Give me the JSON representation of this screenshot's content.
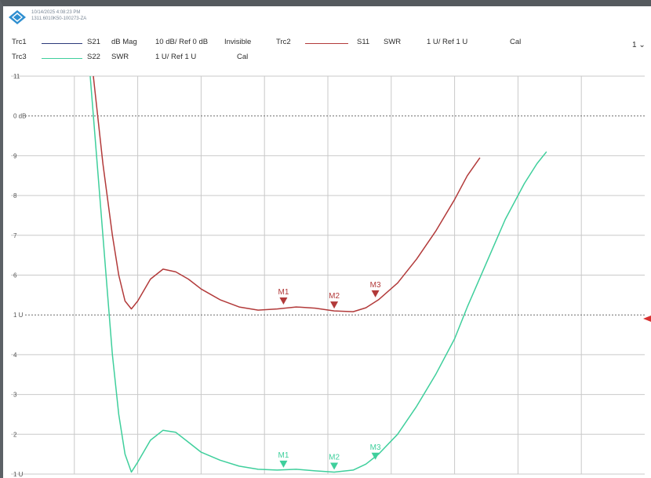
{
  "header": {
    "timestamp": "10/14/2025 4:08:23 PM",
    "serial": "1311.6010K50-100273-ZA"
  },
  "channel_selector": {
    "label": "1",
    "icon": "chevron-down-icon"
  },
  "legend": [
    {
      "trace": "Trc1",
      "param": "S21",
      "format": "dB Mag",
      "scale": "10 dB/ Ref 0 dB",
      "state": "Invisible",
      "color": "#2c3a7a"
    },
    {
      "trace": "Trc2",
      "param": "S11",
      "format": "SWR",
      "scale": "1 U/ Ref 1 U",
      "state": "Cal",
      "color": "#b23a3a"
    },
    {
      "trace": "Trc3",
      "param": "S22",
      "format": "SWR",
      "scale": "1 U/ Ref 1 U",
      "state": "Cal",
      "color": "#3fcf9c"
    }
  ],
  "ref_labels": {
    "trc1": "0 dB",
    "trc23": "1 U"
  },
  "colors": {
    "trc2": "#b23a3a",
    "trc3": "#3fcf9c",
    "grid": "#c9c9c9",
    "reference_line": "#6d6d6d"
  },
  "chart_data": {
    "type": "line",
    "title": "",
    "xlabel": "",
    "ylabel": "",
    "grid": true,
    "xlim": [
      0,
      10
    ],
    "ylim": [
      1,
      11
    ],
    "y_tick_labels": [
      "1 U",
      "2",
      "3",
      "4",
      "1 U",
      "6",
      "7",
      "8",
      "9",
      "0 dB",
      "11"
    ],
    "series": [
      {
        "name": "Trc2",
        "x": [
          1.3,
          1.45,
          1.6,
          1.7,
          1.8,
          1.9,
          2.0,
          2.2,
          2.4,
          2.6,
          2.8,
          3.0,
          3.3,
          3.6,
          3.9,
          4.2,
          4.5,
          4.8,
          5.1,
          5.4,
          5.6,
          5.8,
          6.1,
          6.4,
          6.7,
          7.0,
          7.2,
          7.4
        ],
        "y": [
          11.0,
          8.8,
          7.0,
          6.0,
          5.35,
          5.15,
          5.35,
          5.9,
          6.15,
          6.08,
          5.9,
          5.65,
          5.38,
          5.2,
          5.12,
          5.15,
          5.2,
          5.17,
          5.1,
          5.08,
          5.18,
          5.38,
          5.8,
          6.4,
          7.1,
          7.9,
          8.5,
          8.95
        ]
      },
      {
        "name": "Trc3",
        "x": [
          1.25,
          1.35,
          1.5,
          1.6,
          1.7,
          1.8,
          1.9,
          2.0,
          2.2,
          2.4,
          2.6,
          2.8,
          3.0,
          3.3,
          3.6,
          3.9,
          4.2,
          4.5,
          4.8,
          5.1,
          5.4,
          5.6,
          5.8,
          6.1,
          6.4,
          6.7,
          7.0,
          7.2,
          7.5,
          7.8,
          8.1,
          8.3,
          8.45
        ],
        "y": [
          11.0,
          9.0,
          6.0,
          4.0,
          2.5,
          1.5,
          1.05,
          1.3,
          1.85,
          2.1,
          2.05,
          1.8,
          1.55,
          1.35,
          1.2,
          1.12,
          1.1,
          1.12,
          1.08,
          1.05,
          1.1,
          1.25,
          1.5,
          2.0,
          2.7,
          3.5,
          4.4,
          5.2,
          6.3,
          7.4,
          8.3,
          8.8,
          9.1
        ]
      }
    ],
    "markers": [
      {
        "series": "Trc2",
        "label": "M1",
        "x": 4.3,
        "y": 5.2
      },
      {
        "series": "Trc2",
        "label": "M2",
        "x": 5.1,
        "y": 5.1
      },
      {
        "series": "Trc2",
        "label": "M3",
        "x": 5.75,
        "y": 5.38
      },
      {
        "series": "Trc3",
        "label": "M1",
        "x": 4.3,
        "y": 1.1
      },
      {
        "series": "Trc3",
        "label": "M2",
        "x": 5.1,
        "y": 1.05
      },
      {
        "series": "Trc3",
        "label": "M3",
        "x": 5.75,
        "y": 1.3
      }
    ],
    "reference_lines": [
      {
        "label": "0 dB",
        "y": 10
      },
      {
        "label": "1 U",
        "y": 5
      }
    ]
  }
}
